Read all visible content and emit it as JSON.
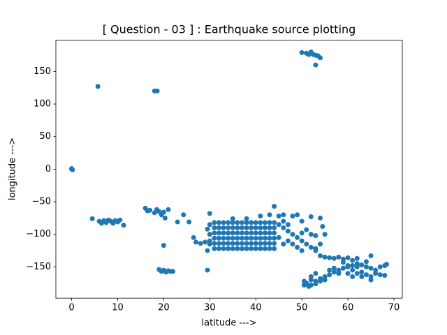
{
  "chart_data": {
    "type": "scatter",
    "title": "[ Question - 03 ] : Earthquake source plotting",
    "x_label": "latitude --->",
    "y_label": "longitude --->",
    "color": "#1f77b4",
    "xlim": [
      -3.42,
      71.82
    ],
    "ylim": [
      -198,
      198
    ],
    "xticks": [
      0,
      10,
      20,
      30,
      40,
      50,
      60,
      70
    ],
    "yticks": [
      {
        "value": -150,
        "label": "−150"
      },
      {
        "value": -100,
        "label": "−100"
      },
      {
        "value": -50,
        "label": "−50"
      },
      0,
      50,
      100,
      150
    ],
    "x": [
      0,
      0,
      0.2,
      5.7,
      18,
      18.6,
      50,
      51,
      52,
      52.5,
      53,
      53.5,
      54,
      51.5,
      53,
      4.5,
      6,
      6.5,
      7,
      7.5,
      8,
      8.5,
      9,
      9.5,
      10,
      10.5,
      11.3,
      16,
      16.5,
      17,
      18,
      18.5,
      19,
      19.5,
      20,
      20.3,
      21,
      20,
      19,
      19.5,
      20,
      20.5,
      21,
      21.5,
      22,
      23,
      24.3,
      25.5,
      26.5,
      27,
      28,
      29,
      29.5,
      29.5,
      30,
      29.5,
      30,
      30,
      30,
      30,
      31,
      32,
      33,
      34,
      35,
      36,
      37,
      38,
      39,
      40,
      41,
      42,
      43,
      44,
      31,
      32,
      33,
      34,
      35,
      36,
      37,
      38,
      39,
      40,
      41,
      42,
      43,
      44,
      31,
      32,
      33,
      34,
      35,
      36,
      37,
      38,
      39,
      40,
      41,
      42,
      43,
      44,
      31,
      32,
      33,
      34,
      35,
      36,
      37,
      38,
      39,
      40,
      41,
      42,
      43,
      44,
      31,
      32,
      33,
      34,
      35,
      36,
      37,
      38,
      39,
      40,
      41,
      42,
      43,
      44,
      31,
      32,
      33,
      34,
      35,
      36,
      37,
      38,
      39,
      40,
      41,
      42,
      43,
      44,
      35,
      38,
      41,
      43,
      44,
      45,
      46,
      48,
      49,
      50,
      45,
      46,
      47,
      48,
      49,
      50,
      51,
      52,
      53,
      45,
      46,
      47,
      52,
      53,
      51,
      50,
      48,
      49,
      50,
      46,
      47,
      52,
      54,
      54.5,
      55,
      54,
      53,
      50.5,
      51,
      52,
      53,
      54,
      52,
      55,
      56,
      57,
      58,
      59,
      60,
      61,
      62,
      63,
      64,
      65,
      66,
      67,
      68,
      68.4,
      54,
      55,
      56,
      57,
      58,
      59,
      60,
      61,
      62,
      65,
      56,
      57,
      58,
      60,
      61,
      62,
      63,
      64,
      65,
      66,
      67,
      68,
      60,
      61,
      63,
      65,
      59,
      62,
      64,
      53,
      55,
      54,
      52,
      53,
      50.5,
      51.5
    ],
    "values": [
      0,
      1,
      -1,
      127,
      120,
      120,
      179,
      178,
      180,
      176,
      175,
      174,
      171,
      176,
      160,
      -76,
      -80,
      -83,
      -79,
      -82,
      -78,
      -80,
      -83,
      -79,
      -81,
      -78,
      -86,
      -60,
      -64,
      -63,
      -67,
      -62,
      -65,
      -70,
      -66,
      -75,
      -62,
      -117,
      -154,
      -157,
      -155,
      -158,
      -156,
      -157,
      -157,
      -81,
      -70,
      -81,
      -105,
      -112,
      -114,
      -112,
      -125,
      -155,
      -68,
      -92,
      -100,
      -85,
      -110,
      -115,
      -82,
      -82,
      -82,
      -82,
      -82,
      -82,
      -82,
      -82,
      -82,
      -82,
      -82,
      -82,
      -82,
      -82,
      -90,
      -90,
      -90,
      -90,
      -90,
      -90,
      -90,
      -90,
      -90,
      -90,
      -90,
      -90,
      -90,
      -90,
      -98,
      -98,
      -98,
      -98,
      -98,
      -98,
      -98,
      -98,
      -98,
      -98,
      -98,
      -98,
      -98,
      -98,
      -106,
      -106,
      -106,
      -106,
      -106,
      -106,
      -106,
      -106,
      -106,
      -106,
      -106,
      -106,
      -106,
      -106,
      -114,
      -114,
      -114,
      -114,
      -114,
      -114,
      -114,
      -114,
      -114,
      -114,
      -114,
      -114,
      -114,
      -114,
      -122,
      -122,
      -122,
      -122,
      -122,
      -122,
      -122,
      -122,
      -122,
      -122,
      -122,
      -122,
      -122,
      -122,
      -76,
      -76,
      -72,
      -70,
      -57,
      -72,
      -70,
      -72,
      -70,
      -80,
      -85,
      -90,
      -95,
      -100,
      -105,
      -110,
      -115,
      -120,
      -125,
      -105,
      -115,
      -110,
      -100,
      -102,
      -93,
      -98,
      -115,
      -120,
      -125,
      -80,
      -85,
      -73,
      -75,
      -88,
      -100,
      -115,
      -122,
      -178,
      -175,
      -178,
      -176,
      -172,
      -170,
      -165,
      -162,
      -158,
      -155,
      -152,
      -150,
      -148,
      -150,
      -147,
      -150,
      -152,
      -155,
      -150,
      -148,
      -146,
      -133,
      -135,
      -136,
      -137,
      -135,
      -138,
      -136,
      -140,
      -137,
      -133,
      -155,
      -152,
      -160,
      -148,
      -155,
      -160,
      -158,
      -162,
      -165,
      -160,
      -162,
      -163,
      -160,
      -165,
      -165,
      -170,
      -143,
      -145,
      -142,
      -172,
      -170,
      -168,
      -165,
      -160,
      -172,
      -180
    ]
  }
}
